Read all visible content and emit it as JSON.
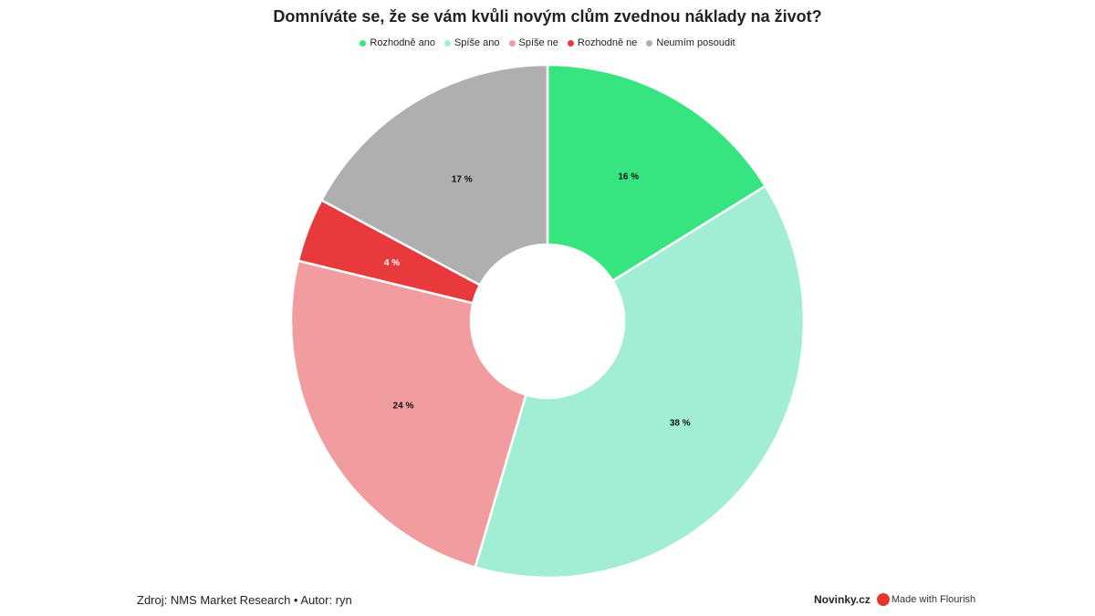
{
  "chart_data": {
    "type": "pie",
    "style": "donut",
    "title": "Domníváte se, že se vám kvůli novým clům zvednou náklady na život?",
    "legend_placement": "top",
    "slices": [
      {
        "name": "Rozhodně ano",
        "value": 16,
        "label": "16 %",
        "color": "#36e57f"
      },
      {
        "name": "Spíše ano",
        "value": 38,
        "label": "38 %",
        "color": "#a1eed5"
      },
      {
        "name": "Spíše ne",
        "value": 24,
        "label": "24 %",
        "color": "#f19d9f"
      },
      {
        "name": "Rozhodně ne",
        "value": 4,
        "label": "4 %",
        "color": "#e83a3d"
      },
      {
        "name": "Neumím posoudit",
        "value": 17,
        "label": "17 %",
        "color": "#afafaf"
      }
    ]
  },
  "footer": {
    "source": "Zdroj: NMS Market Research • Autor: ryn",
    "brand": "Novinky.cz",
    "credit": "Made with Flourish"
  }
}
